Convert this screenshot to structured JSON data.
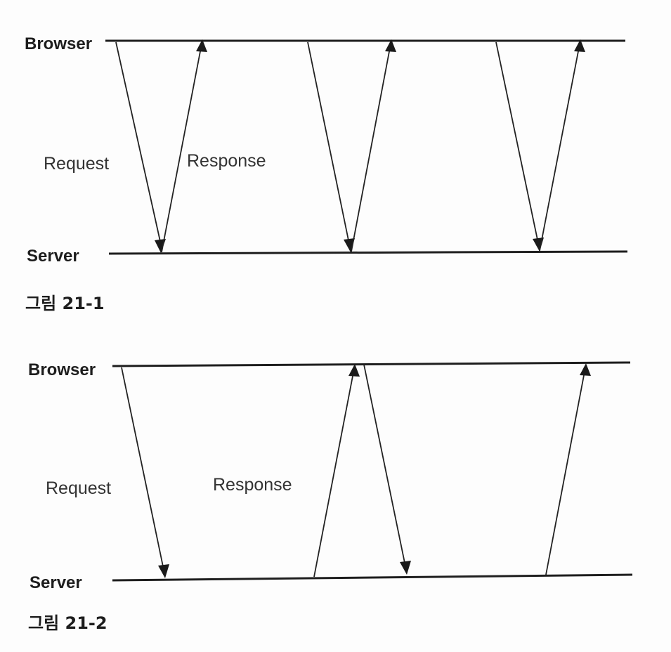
{
  "figure1": {
    "browser_label": "Browser",
    "server_label": "Server",
    "request_label": "Request",
    "response_label": "Response",
    "caption": "그림 21-1"
  },
  "figure2": {
    "browser_label": "Browser",
    "server_label": "Server",
    "request_label": "Request",
    "response_label": "Response",
    "caption": "그림 21-2"
  },
  "colors": {
    "ink": "#1e1e1e",
    "background": "#fdfdfd"
  }
}
